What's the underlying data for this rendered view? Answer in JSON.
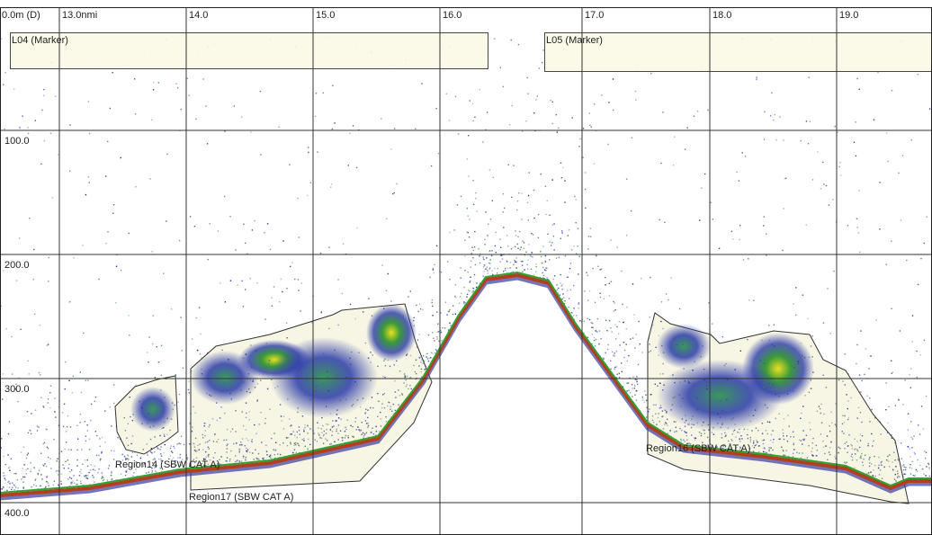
{
  "range_label": "0.0m (D)",
  "distance_labels": [
    "13.0nmi",
    "14.0",
    "15.0",
    "16.0",
    "17.0",
    "18.0",
    "19.0"
  ],
  "depth_labels": [
    "100.0",
    "200.0",
    "300.0",
    "400.0"
  ],
  "markers": [
    "L04 (Marker)",
    "L05 (Marker)"
  ],
  "regions": [
    "Region14 (SBW CAT A)",
    "Region17 (SBW CAT A)",
    "Region16 (SBW CAT A)"
  ]
}
